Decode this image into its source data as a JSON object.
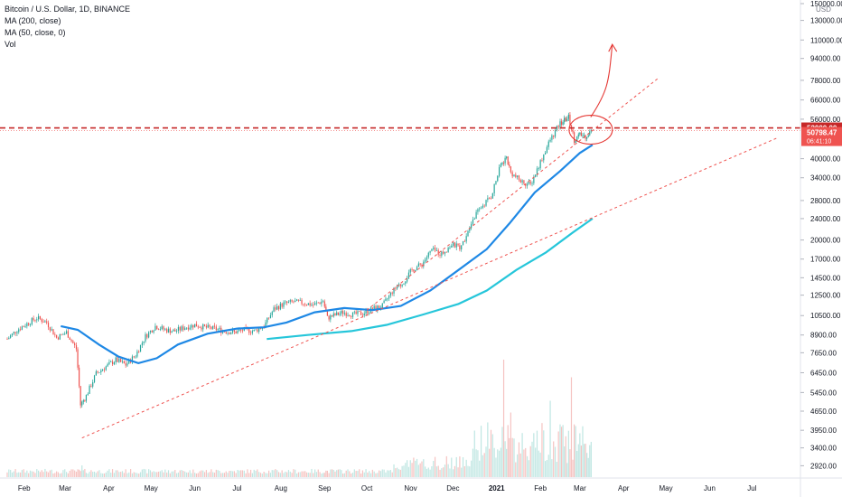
{
  "legend": {
    "symbol": "Bitcoin / U.S. Dollar, 1D, BINANCE",
    "ma200": "MA (200, close)",
    "ma50": "MA (50, close, 0)",
    "vol": "Vol"
  },
  "currency": "USD",
  "colors": {
    "up": "#26a69a",
    "down": "#ef5350",
    "ma50": "#1e88e5",
    "ma200": "#26c6da",
    "level": "#c62828",
    "annotation": "#e53935",
    "trendline": "#ef5350"
  },
  "chart_data": {
    "type": "candlestick",
    "y_scale": "log",
    "ylim": [
      2650,
      150000
    ],
    "y_ticks": [
      "150000.00",
      "130000.00",
      "110000.00",
      "94000.00",
      "78000.00",
      "66000.00",
      "56000.00",
      "40000.00",
      "34000.00",
      "28000.00",
      "24000.00",
      "20000.00",
      "17000.00",
      "14500.00",
      "12500.00",
      "10500.00",
      "8900.00",
      "7650.00",
      "6450.00",
      "5450.00",
      "4650.00",
      "3950.00",
      "3400.00",
      "2920.00"
    ],
    "x_ticks": [
      "Feb",
      "Mar",
      "Apr",
      "May",
      "Jun",
      "Jul",
      "Aug",
      "Sep",
      "Oct",
      "Nov",
      "Dec",
      "2021",
      "Feb",
      "Mar",
      "Apr",
      "May",
      "Jun",
      "Jul"
    ],
    "price_labels": {
      "level": "52000.00",
      "last": "50798.47",
      "countdown": "06:41:10"
    },
    "levels": [
      52000
    ],
    "close_series": [
      [
        "2020-01-20",
        8600
      ],
      [
        "2020-01-27",
        9300
      ],
      [
        "2020-02-03",
        9800
      ],
      [
        "2020-02-10",
        10300
      ],
      [
        "2020-02-17",
        9900
      ],
      [
        "2020-02-24",
        8700
      ],
      [
        "2020-03-02",
        9100
      ],
      [
        "2020-03-09",
        7900
      ],
      [
        "2020-03-12",
        4900
      ],
      [
        "2020-03-16",
        5300
      ],
      [
        "2020-03-23",
        6400
      ],
      [
        "2020-03-30",
        6800
      ],
      [
        "2020-04-06",
        7200
      ],
      [
        "2020-04-13",
        6900
      ],
      [
        "2020-04-20",
        7500
      ],
      [
        "2020-04-27",
        8800
      ],
      [
        "2020-05-04",
        9600
      ],
      [
        "2020-05-11",
        9300
      ],
      [
        "2020-05-18",
        9200
      ],
      [
        "2020-05-25",
        9500
      ],
      [
        "2020-06-01",
        9700
      ],
      [
        "2020-06-08",
        9500
      ],
      [
        "2020-06-15",
        9400
      ],
      [
        "2020-06-22",
        9200
      ],
      [
        "2020-06-29",
        9100
      ],
      [
        "2020-07-06",
        9300
      ],
      [
        "2020-07-13",
        9200
      ],
      [
        "2020-07-20",
        9600
      ],
      [
        "2020-07-27",
        11100
      ],
      [
        "2020-08-03",
        11600
      ],
      [
        "2020-08-10",
        11800
      ],
      [
        "2020-08-17",
        11700
      ],
      [
        "2020-08-24",
        11500
      ],
      [
        "2020-08-31",
        11900
      ],
      [
        "2020-09-03",
        10300
      ],
      [
        "2020-09-14",
        10800
      ],
      [
        "2020-09-21",
        10600
      ],
      [
        "2020-09-28",
        10700
      ],
      [
        "2020-10-05",
        11100
      ],
      [
        "2020-10-12",
        11400
      ],
      [
        "2020-10-19",
        12900
      ],
      [
        "2020-10-26",
        13800
      ],
      [
        "2020-11-02",
        15500
      ],
      [
        "2020-11-09",
        16300
      ],
      [
        "2020-11-16",
        18400
      ],
      [
        "2020-11-23",
        17800
      ],
      [
        "2020-11-30",
        19200
      ],
      [
        "2020-12-07",
        18800
      ],
      [
        "2020-12-14",
        23500
      ],
      [
        "2020-12-21",
        26500
      ],
      [
        "2020-12-28",
        29000
      ],
      [
        "2021-01-04",
        38000
      ],
      [
        "2021-01-08",
        40500
      ],
      [
        "2021-01-11",
        35500
      ],
      [
        "2021-01-18",
        33000
      ],
      [
        "2021-01-25",
        32000
      ],
      [
        "2021-02-01",
        39000
      ],
      [
        "2021-02-08",
        47000
      ],
      [
        "2021-02-15",
        54000
      ],
      [
        "2021-02-21",
        57000
      ],
      [
        "2021-02-25",
        47000
      ],
      [
        "2021-03-01",
        49000
      ],
      [
        "2021-03-05",
        48500
      ],
      [
        "2021-03-09",
        50798.47
      ]
    ],
    "ma50": [
      [
        "2020-02-27",
        9600
      ],
      [
        "2020-03-10",
        9300
      ],
      [
        "2020-03-25",
        8200
      ],
      [
        "2020-04-08",
        7400
      ],
      [
        "2020-04-22",
        7000
      ],
      [
        "2020-05-05",
        7300
      ],
      [
        "2020-05-20",
        8200
      ],
      [
        "2020-06-10",
        9000
      ],
      [
        "2020-07-01",
        9400
      ],
      [
        "2020-07-20",
        9500
      ],
      [
        "2020-08-05",
        9900
      ],
      [
        "2020-08-25",
        10800
      ],
      [
        "2020-09-15",
        11200
      ],
      [
        "2020-10-05",
        11000
      ],
      [
        "2020-10-25",
        11400
      ],
      [
        "2020-11-15",
        13000
      ],
      [
        "2020-12-05",
        15500
      ],
      [
        "2020-12-25",
        18500
      ],
      [
        "2021-01-10",
        23000
      ],
      [
        "2021-01-28",
        30000
      ],
      [
        "2021-02-15",
        36000
      ],
      [
        "2021-03-01",
        42000
      ],
      [
        "2021-03-10",
        45000
      ]
    ],
    "ma200": [
      [
        "2020-07-22",
        8600
      ],
      [
        "2020-08-20",
        8900
      ],
      [
        "2020-09-20",
        9200
      ],
      [
        "2020-10-15",
        9700
      ],
      [
        "2020-11-10",
        10600
      ],
      [
        "2020-12-05",
        11600
      ],
      [
        "2020-12-25",
        13000
      ],
      [
        "2021-01-15",
        15500
      ],
      [
        "2021-02-05",
        18000
      ],
      [
        "2021-02-25",
        21500
      ],
      [
        "2021-03-10",
        24000
      ]
    ],
    "volume_peaks": [
      [
        "2020-03-13",
        0.1
      ],
      [
        "2021-01-06",
        1.0
      ],
      [
        "2021-01-11",
        0.55
      ],
      [
        "2021-02-08",
        0.65
      ],
      [
        "2021-02-23",
        0.85
      ]
    ],
    "trendlines": [
      {
        "from": [
          "2020-03-13",
          3700
        ],
        "to": [
          "2021-07-20",
          48000
        ]
      },
      {
        "from": [
          "2020-10-01",
          11000
        ],
        "to": [
          "2021-04-25",
          79000
        ]
      }
    ],
    "annotations": [
      {
        "type": "ellipse",
        "at": [
          "2021-03-01",
          52000
        ]
      },
      {
        "type": "arrow",
        "from": [
          "2021-03-01",
          52000
        ],
        "to": [
          "2021-03-24",
          106000
        ]
      }
    ]
  }
}
